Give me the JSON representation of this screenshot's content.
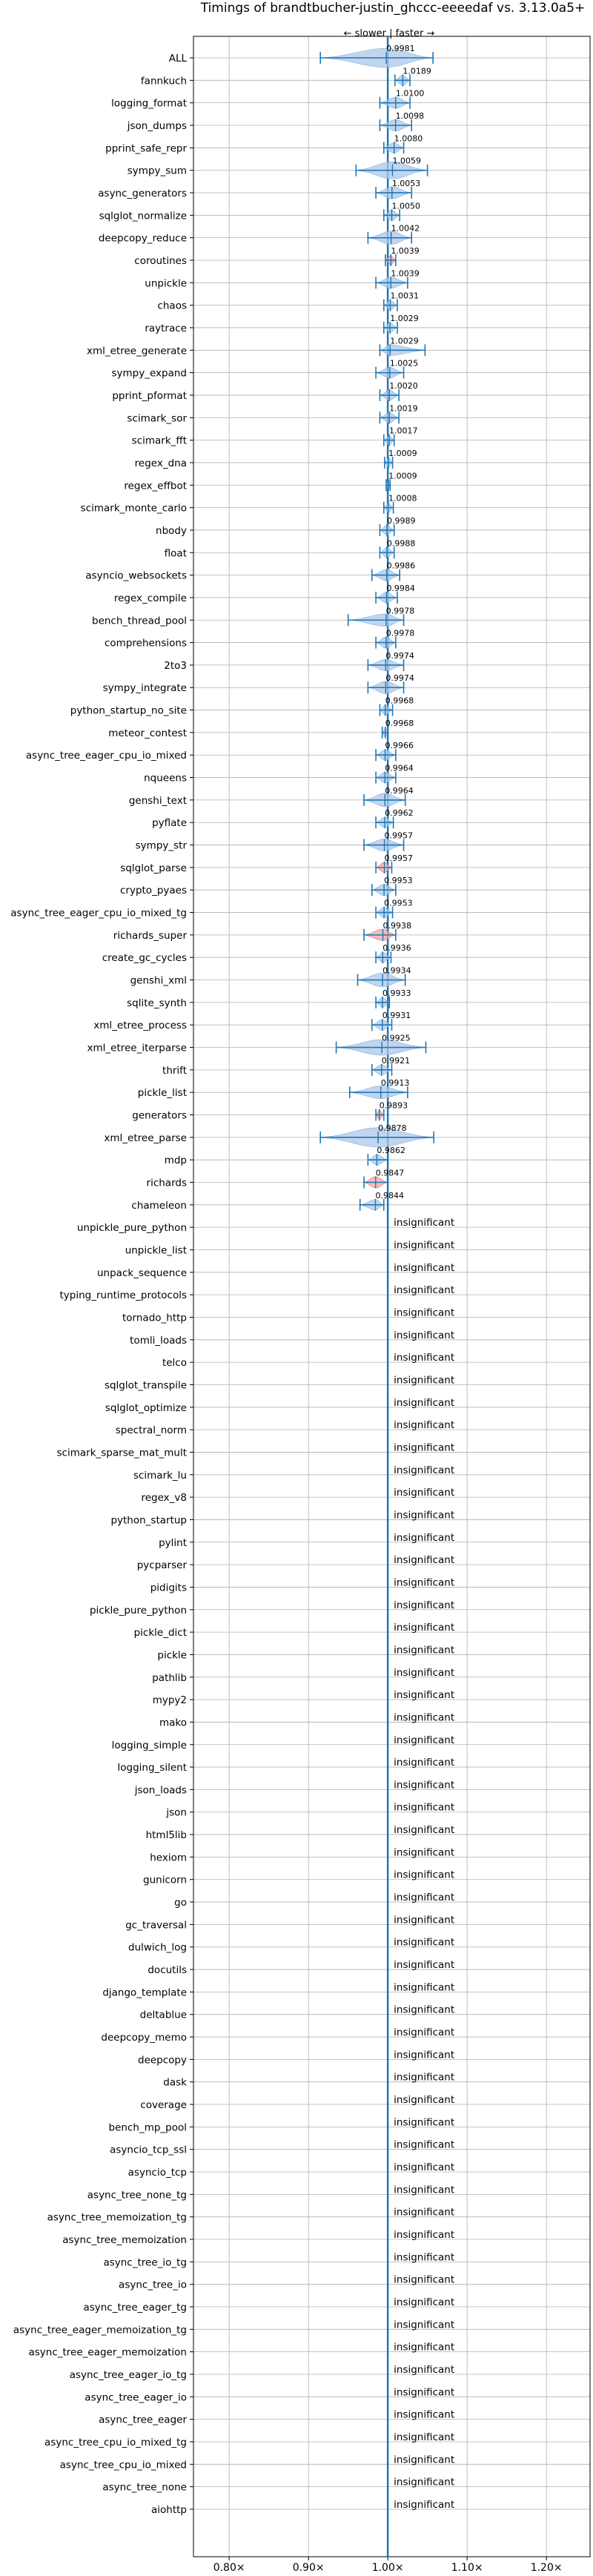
{
  "chart_data": {
    "type": "violin",
    "title": "Timings of brandtbucher-justin_ghccc-eeeedaf vs. 3.13.0a5+",
    "subtitle": "← slower | faster →",
    "x_tick_labels": [
      "0.80×",
      "0.90×",
      "1.00×",
      "1.10×",
      "1.20×"
    ],
    "x_ticks": [
      0.8,
      0.9,
      1.0,
      1.1,
      1.2
    ],
    "xlim": [
      0.755,
      1.255
    ],
    "grid": true,
    "reference_line": 1.0,
    "insignificant_label": "insignificant",
    "colors": {
      "faster": "#aec7e8",
      "slower": "#f4a6a6",
      "line": "#1f77b4"
    },
    "benchmarks": [
      {
        "name": "ALL",
        "value": 0.9981,
        "label": "0.9981",
        "lo": 0.915,
        "hi": 1.057,
        "spread": 0.035,
        "color": "faster"
      },
      {
        "name": "fannkuch",
        "value": 1.0189,
        "label": "1.0189",
        "lo": 1.009,
        "hi": 1.028,
        "spread": 0.01,
        "color": "faster"
      },
      {
        "name": "logging_format",
        "value": 1.01,
        "label": "1.0100",
        "lo": 0.99,
        "hi": 1.028,
        "spread": 0.012,
        "color": "faster"
      },
      {
        "name": "json_dumps",
        "value": 1.0098,
        "label": "1.0098",
        "lo": 0.99,
        "hi": 1.03,
        "spread": 0.012,
        "color": "faster"
      },
      {
        "name": "pprint_safe_repr",
        "value": 1.008,
        "label": "1.0080",
        "lo": 0.995,
        "hi": 1.02,
        "spread": 0.01,
        "color": "faster"
      },
      {
        "name": "sympy_sum",
        "value": 1.0059,
        "label": "1.0059",
        "lo": 0.96,
        "hi": 1.05,
        "spread": 0.03,
        "color": "faster"
      },
      {
        "name": "async_generators",
        "value": 1.0053,
        "label": "1.0053",
        "lo": 0.985,
        "hi": 1.03,
        "spread": 0.014,
        "color": "faster"
      },
      {
        "name": "sqlglot_normalize",
        "value": 1.005,
        "label": "1.0050",
        "lo": 0.995,
        "hi": 1.015,
        "spread": 0.01,
        "color": "faster"
      },
      {
        "name": "deepcopy_reduce",
        "value": 1.0042,
        "label": "1.0042",
        "lo": 0.975,
        "hi": 1.03,
        "spread": 0.018,
        "color": "faster"
      },
      {
        "name": "coroutines",
        "value": 1.0039,
        "label": "1.0039",
        "lo": 0.997,
        "hi": 1.01,
        "spread": 0.006,
        "color": "slower"
      },
      {
        "name": "unpickle",
        "value": 1.0039,
        "label": "1.0039",
        "lo": 0.985,
        "hi": 1.025,
        "spread": 0.012,
        "color": "faster"
      },
      {
        "name": "chaos",
        "value": 1.0031,
        "label": "1.0031",
        "lo": 0.995,
        "hi": 1.012,
        "spread": 0.008,
        "color": "faster"
      },
      {
        "name": "raytrace",
        "value": 1.0029,
        "label": "1.0029",
        "lo": 0.995,
        "hi": 1.012,
        "spread": 0.007,
        "color": "faster"
      },
      {
        "name": "xml_etree_generate",
        "value": 1.0029,
        "label": "1.0029",
        "lo": 0.99,
        "hi": 1.047,
        "spread": 0.01,
        "color": "faster"
      },
      {
        "name": "sympy_expand",
        "value": 1.0025,
        "label": "1.0025",
        "lo": 0.985,
        "hi": 1.02,
        "spread": 0.01,
        "color": "faster"
      },
      {
        "name": "pprint_pformat",
        "value": 1.002,
        "label": "1.0020",
        "lo": 0.99,
        "hi": 1.014,
        "spread": 0.009,
        "color": "faster"
      },
      {
        "name": "scimark_sor",
        "value": 1.0019,
        "label": "1.0019",
        "lo": 0.99,
        "hi": 1.014,
        "spread": 0.009,
        "color": "faster"
      },
      {
        "name": "scimark_fft",
        "value": 1.0017,
        "label": "1.0017",
        "lo": 0.995,
        "hi": 1.008,
        "spread": 0.007,
        "color": "faster"
      },
      {
        "name": "regex_dna",
        "value": 1.0009,
        "label": "1.0009",
        "lo": 0.996,
        "hi": 1.006,
        "spread": 0.005,
        "color": "faster"
      },
      {
        "name": "regex_effbot",
        "value": 1.0009,
        "label": "1.0009",
        "lo": 0.998,
        "hi": 1.003,
        "spread": 0.003,
        "color": "faster"
      },
      {
        "name": "scimark_monte_carlo",
        "value": 1.0008,
        "label": "1.0008",
        "lo": 0.995,
        "hi": 1.007,
        "spread": 0.005,
        "color": "faster"
      },
      {
        "name": "nbody",
        "value": 0.9989,
        "label": "0.9989",
        "lo": 0.99,
        "hi": 1.008,
        "spread": 0.008,
        "color": "faster"
      },
      {
        "name": "float",
        "value": 0.9988,
        "label": "0.9988",
        "lo": 0.99,
        "hi": 1.008,
        "spread": 0.008,
        "color": "faster"
      },
      {
        "name": "asyncio_websockets",
        "value": 0.9986,
        "label": "0.9986",
        "lo": 0.98,
        "hi": 1.015,
        "spread": 0.012,
        "color": "faster"
      },
      {
        "name": "regex_compile",
        "value": 0.9984,
        "label": "0.9984",
        "lo": 0.985,
        "hi": 1.012,
        "spread": 0.01,
        "color": "faster"
      },
      {
        "name": "bench_thread_pool",
        "value": 0.9978,
        "label": "0.9978",
        "lo": 0.95,
        "hi": 1.02,
        "spread": 0.015,
        "color": "faster"
      },
      {
        "name": "comprehensions",
        "value": 0.9978,
        "label": "0.9978",
        "lo": 0.985,
        "hi": 1.01,
        "spread": 0.012,
        "color": "faster"
      },
      {
        "name": "2to3",
        "value": 0.9974,
        "label": "0.9974",
        "lo": 0.975,
        "hi": 1.02,
        "spread": 0.012,
        "color": "faster"
      },
      {
        "name": "sympy_integrate",
        "value": 0.9974,
        "label": "0.9974",
        "lo": 0.975,
        "hi": 1.02,
        "spread": 0.015,
        "color": "faster"
      },
      {
        "name": "python_startup_no_site",
        "value": 0.9968,
        "label": "0.9968",
        "lo": 0.99,
        "hi": 1.006,
        "spread": 0.007,
        "color": "faster"
      },
      {
        "name": "meteor_contest",
        "value": 0.9968,
        "label": "0.9968",
        "lo": 0.993,
        "hi": 1.0,
        "spread": 0.005,
        "color": "faster"
      },
      {
        "name": "async_tree_eager_cpu_io_mixed",
        "value": 0.9966,
        "label": "0.9966",
        "lo": 0.985,
        "hi": 1.01,
        "spread": 0.01,
        "color": "faster"
      },
      {
        "name": "nqueens",
        "value": 0.9964,
        "label": "0.9964",
        "lo": 0.985,
        "hi": 1.01,
        "spread": 0.01,
        "color": "faster"
      },
      {
        "name": "genshi_text",
        "value": 0.9964,
        "label": "0.9964",
        "lo": 0.97,
        "hi": 1.022,
        "spread": 0.018,
        "color": "faster"
      },
      {
        "name": "pyflate",
        "value": 0.9962,
        "label": "0.9962",
        "lo": 0.985,
        "hi": 1.007,
        "spread": 0.009,
        "color": "faster"
      },
      {
        "name": "sympy_str",
        "value": 0.9957,
        "label": "0.9957",
        "lo": 0.97,
        "hi": 1.02,
        "spread": 0.014,
        "color": "faster"
      },
      {
        "name": "sqlglot_parse",
        "value": 0.9957,
        "label": "0.9957",
        "lo": 0.985,
        "hi": 1.005,
        "spread": 0.009,
        "color": "slower"
      },
      {
        "name": "crypto_pyaes",
        "value": 0.9953,
        "label": "0.9953",
        "lo": 0.98,
        "hi": 1.01,
        "spread": 0.012,
        "color": "faster"
      },
      {
        "name": "async_tree_eager_cpu_io_mixed_tg",
        "value": 0.9953,
        "label": "0.9953",
        "lo": 0.985,
        "hi": 1.006,
        "spread": 0.009,
        "color": "faster"
      },
      {
        "name": "richards_super",
        "value": 0.9938,
        "label": "0.9938",
        "lo": 0.97,
        "hi": 1.01,
        "spread": 0.012,
        "color": "slower"
      },
      {
        "name": "create_gc_cycles",
        "value": 0.9936,
        "label": "0.9936",
        "lo": 0.985,
        "hi": 1.004,
        "spread": 0.009,
        "color": "faster"
      },
      {
        "name": "genshi_xml",
        "value": 0.9934,
        "label": "0.9934",
        "lo": 0.962,
        "hi": 1.022,
        "spread": 0.02,
        "color": "faster"
      },
      {
        "name": "sqlite_synth",
        "value": 0.9933,
        "label": "0.9933",
        "lo": 0.985,
        "hi": 1.002,
        "spread": 0.008,
        "color": "faster"
      },
      {
        "name": "xml_etree_process",
        "value": 0.9931,
        "label": "0.9931",
        "lo": 0.98,
        "hi": 1.005,
        "spread": 0.01,
        "color": "faster"
      },
      {
        "name": "xml_etree_iterparse",
        "value": 0.9925,
        "label": "0.9925",
        "lo": 0.935,
        "hi": 1.048,
        "spread": 0.025,
        "color": "faster"
      },
      {
        "name": "thrift",
        "value": 0.9921,
        "label": "0.9921",
        "lo": 0.98,
        "hi": 1.005,
        "spread": 0.01,
        "color": "faster"
      },
      {
        "name": "pickle_list",
        "value": 0.9913,
        "label": "0.9913",
        "lo": 0.952,
        "hi": 1.025,
        "spread": 0.016,
        "color": "faster"
      },
      {
        "name": "generators",
        "value": 0.9893,
        "label": "0.9893",
        "lo": 0.985,
        "hi": 0.995,
        "spread": 0.006,
        "color": "slower"
      },
      {
        "name": "xml_etree_parse",
        "value": 0.9878,
        "label": "0.9878",
        "lo": 0.915,
        "hi": 1.058,
        "spread": 0.04,
        "color": "faster"
      },
      {
        "name": "mdp",
        "value": 0.9862,
        "label": "0.9862",
        "lo": 0.975,
        "hi": 1.0,
        "spread": 0.01,
        "color": "faster"
      },
      {
        "name": "richards",
        "value": 0.9847,
        "label": "0.9847",
        "lo": 0.97,
        "hi": 1.0,
        "spread": 0.012,
        "color": "slower"
      },
      {
        "name": "chameleon",
        "value": 0.9844,
        "label": "0.9844",
        "lo": 0.965,
        "hi": 0.995,
        "spread": 0.01,
        "color": "faster"
      },
      {
        "name": "unpickle_pure_python",
        "insignificant": true
      },
      {
        "name": "unpickle_list",
        "insignificant": true
      },
      {
        "name": "unpack_sequence",
        "insignificant": true
      },
      {
        "name": "typing_runtime_protocols",
        "insignificant": true
      },
      {
        "name": "tornado_http",
        "insignificant": true
      },
      {
        "name": "tomli_loads",
        "insignificant": true
      },
      {
        "name": "telco",
        "insignificant": true
      },
      {
        "name": "sqlglot_transpile",
        "insignificant": true
      },
      {
        "name": "sqlglot_optimize",
        "insignificant": true
      },
      {
        "name": "spectral_norm",
        "insignificant": true
      },
      {
        "name": "scimark_sparse_mat_mult",
        "insignificant": true
      },
      {
        "name": "scimark_lu",
        "insignificant": true
      },
      {
        "name": "regex_v8",
        "insignificant": true
      },
      {
        "name": "python_startup",
        "insignificant": true
      },
      {
        "name": "pylint",
        "insignificant": true
      },
      {
        "name": "pycparser",
        "insignificant": true
      },
      {
        "name": "pidigits",
        "insignificant": true
      },
      {
        "name": "pickle_pure_python",
        "insignificant": true
      },
      {
        "name": "pickle_dict",
        "insignificant": true
      },
      {
        "name": "pickle",
        "insignificant": true
      },
      {
        "name": "pathlib",
        "insignificant": true
      },
      {
        "name": "mypy2",
        "insignificant": true
      },
      {
        "name": "mako",
        "insignificant": true
      },
      {
        "name": "logging_simple",
        "insignificant": true
      },
      {
        "name": "logging_silent",
        "insignificant": true
      },
      {
        "name": "json_loads",
        "insignificant": true
      },
      {
        "name": "json",
        "insignificant": true
      },
      {
        "name": "html5lib",
        "insignificant": true
      },
      {
        "name": "hexiom",
        "insignificant": true
      },
      {
        "name": "gunicorn",
        "insignificant": true
      },
      {
        "name": "go",
        "insignificant": true
      },
      {
        "name": "gc_traversal",
        "insignificant": true
      },
      {
        "name": "dulwich_log",
        "insignificant": true
      },
      {
        "name": "docutils",
        "insignificant": true
      },
      {
        "name": "django_template",
        "insignificant": true
      },
      {
        "name": "deltablue",
        "insignificant": true
      },
      {
        "name": "deepcopy_memo",
        "insignificant": true
      },
      {
        "name": "deepcopy",
        "insignificant": true
      },
      {
        "name": "dask",
        "insignificant": true
      },
      {
        "name": "coverage",
        "insignificant": true
      },
      {
        "name": "bench_mp_pool",
        "insignificant": true
      },
      {
        "name": "asyncio_tcp_ssl",
        "insignificant": true
      },
      {
        "name": "asyncio_tcp",
        "insignificant": true
      },
      {
        "name": "async_tree_none_tg",
        "insignificant": true
      },
      {
        "name": "async_tree_memoization_tg",
        "insignificant": true
      },
      {
        "name": "async_tree_memoization",
        "insignificant": true
      },
      {
        "name": "async_tree_io_tg",
        "insignificant": true
      },
      {
        "name": "async_tree_io",
        "insignificant": true
      },
      {
        "name": "async_tree_eager_tg",
        "insignificant": true
      },
      {
        "name": "async_tree_eager_memoization_tg",
        "insignificant": true
      },
      {
        "name": "async_tree_eager_memoization",
        "insignificant": true
      },
      {
        "name": "async_tree_eager_io_tg",
        "insignificant": true
      },
      {
        "name": "async_tree_eager_io",
        "insignificant": true
      },
      {
        "name": "async_tree_eager",
        "insignificant": true
      },
      {
        "name": "async_tree_cpu_io_mixed_tg",
        "insignificant": true
      },
      {
        "name": "async_tree_cpu_io_mixed",
        "insignificant": true
      },
      {
        "name": "async_tree_none",
        "insignificant": true
      },
      {
        "name": "aiohttp",
        "insignificant": true
      }
    ]
  }
}
